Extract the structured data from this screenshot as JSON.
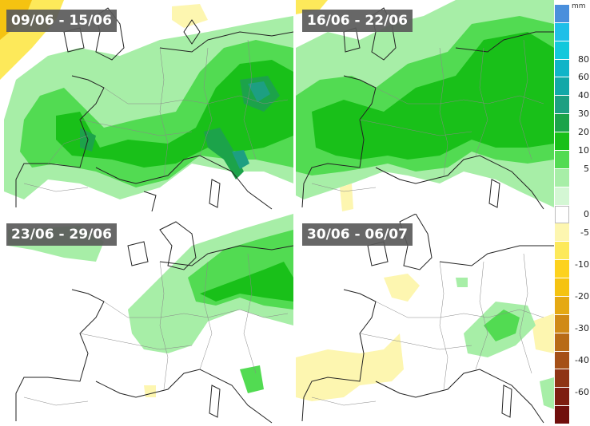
{
  "panels": [
    {
      "label": "09/06 - 15/06"
    },
    {
      "label": "16/06 - 22/06"
    },
    {
      "label": "23/06 - 29/06"
    },
    {
      "label": "30/06 - 06/07"
    }
  ],
  "legend": {
    "unit": "mm",
    "ticks": [
      "80",
      "60",
      "40",
      "30",
      "20",
      "10",
      "5",
      "0",
      "-5",
      "-10",
      "-20",
      "-30",
      "-40",
      "-60"
    ],
    "colors": {
      "wet": [
        "#4a8fdc",
        "#1fbfe8",
        "#13c8dc",
        "#10b4c8",
        "#12a8a8",
        "#1d9f82",
        "#1ca34a",
        "#19c019",
        "#52db52",
        "#a7eea7",
        "#d4f7d4"
      ],
      "neutral": "#ffffff",
      "dry": [
        "#fdf6b0",
        "#fde95a",
        "#fdd21e",
        "#f5c311",
        "#e5a913",
        "#d08a16",
        "#b86b16",
        "#a55017",
        "#8f3415",
        "#7d1d11",
        "#700f0d"
      ]
    }
  },
  "anomaly_colors": {
    "light_green": "#a7eea7",
    "mid_green": "#52db52",
    "green": "#19c019",
    "dark_green": "#1ca34a",
    "teal": "#1d9f82",
    "light_yellow": "#fdf6b0",
    "yellow": "#fde95a",
    "orange": "#f5c311"
  }
}
